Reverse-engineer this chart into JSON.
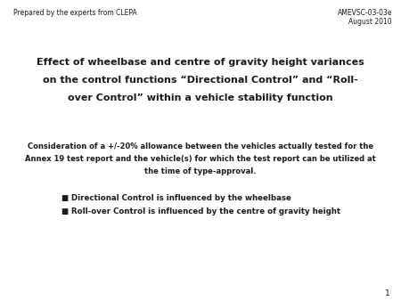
{
  "background_color": "#ffffff",
  "top_left_text": "Prepared by the experts from CLEPA",
  "top_right_line1": "AMEVSC-03-03e",
  "top_right_line2": "August 2010",
  "title_line1": "Effect of wheelbase and centre of gravity height variances",
  "title_line2": "on the control functions “Directional Control” and “Roll-",
  "title_line3": "over Control” within a vehicle stability function",
  "body_text_line1": "Consideration of a +/-20% allowance between the vehicles actually tested for the",
  "body_text_line2": "Annex 19 test report and the vehicle(s) for which the test report can be utilized at",
  "body_text_line3": "the time of type-approval.",
  "bullet1": "Directional Control is influenced by the wheelbase",
  "bullet2": "Roll-over Control is influenced by the centre of gravity height",
  "page_number": "1",
  "text_color": "#1a1a1a",
  "header_fontsize": 5.5,
  "title_fontsize": 8.0,
  "body_fontsize": 6.0,
  "bullet_fontsize": 6.2,
  "page_fontsize": 6.5
}
